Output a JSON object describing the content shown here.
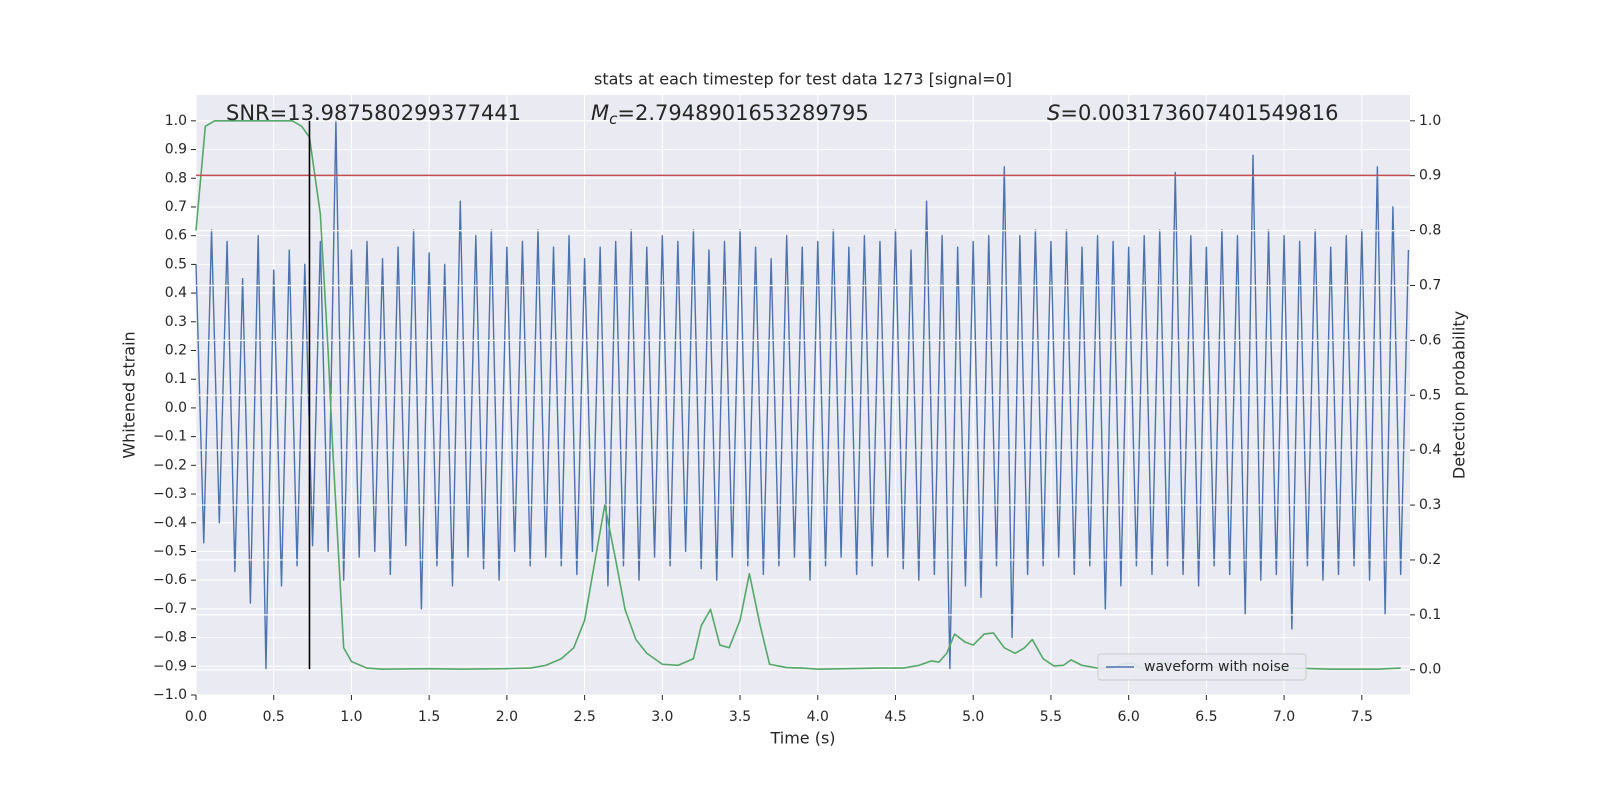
{
  "chart_data": {
    "type": "line",
    "title": "stats at each timestep for test data 1273 [signal=0]",
    "xlabel": "Time (s)",
    "ylabel": "Whitened strain",
    "y2label": "Detection probability",
    "annotations": {
      "snr": "SNR=13.987580299377441",
      "mc_symbol": "M",
      "mc_sub": "c",
      "mc_text": "=2.7948901653289795",
      "s_symbol": "S",
      "s_text": "=0.003173607401549816"
    },
    "xlim": [
      0,
      7.81
    ],
    "ylim": [
      -1.0,
      1.09
    ],
    "y2lim": [
      -0.046,
      1.047
    ],
    "xticks": [
      {
        "value": 0,
        "label": "0.0"
      },
      0.5,
      {
        "value": 1,
        "label": "1.0"
      },
      1.5,
      {
        "value": 2,
        "label": "2.0"
      },
      2.5,
      {
        "value": 3,
        "label": "3.0"
      },
      3.5,
      {
        "value": 4,
        "label": "4.0"
      },
      4.5,
      {
        "value": 5,
        "label": "5.0"
      },
      5.5,
      {
        "value": 6,
        "label": "6.0"
      },
      6.5,
      {
        "value": 7,
        "label": "7.0"
      },
      7.5
    ],
    "yticks": [
      {
        "value": -1,
        "label": "−1.0"
      },
      {
        "value": -0.9,
        "label": "−0.9"
      },
      {
        "value": -0.8,
        "label": "−0.8"
      },
      {
        "value": -0.7,
        "label": "−0.7"
      },
      {
        "value": -0.6,
        "label": "−0.6"
      },
      {
        "value": -0.5,
        "label": "−0.5"
      },
      {
        "value": -0.4,
        "label": "−0.4"
      },
      {
        "value": -0.3,
        "label": "−0.3"
      },
      {
        "value": -0.2,
        "label": "−0.2"
      },
      {
        "value": -0.1,
        "label": "−0.1"
      },
      {
        "value": 0,
        "label": "0.0"
      },
      0.1,
      0.2,
      0.3,
      0.4,
      0.5,
      0.6,
      0.7,
      0.8,
      0.9,
      {
        "value": 1,
        "label": "1.0"
      }
    ],
    "y2ticks": [
      {
        "value": 0,
        "label": "0.0"
      },
      0.1,
      0.2,
      0.3,
      0.4,
      0.5,
      0.6,
      0.7,
      0.8,
      0.9,
      {
        "value": 1,
        "label": "1.0"
      }
    ],
    "grid": true,
    "legend_loc": "lower right",
    "series": [
      {
        "name": "waveform with noise",
        "color": "#4c72b0",
        "x": [
          0.0,
          0.05,
          0.1,
          0.15,
          0.2,
          0.25,
          0.3,
          0.35,
          0.4,
          0.45,
          0.5,
          0.55,
          0.6,
          0.65,
          0.7,
          0.75,
          0.8,
          0.85,
          0.9,
          0.95,
          1.0,
          1.05,
          1.1,
          1.15,
          1.2,
          1.25,
          1.3,
          1.35,
          1.4,
          1.45,
          1.5,
          1.55,
          1.6,
          1.65,
          1.7,
          1.75,
          1.8,
          1.85,
          1.9,
          1.95,
          2.0,
          2.05,
          2.1,
          2.15,
          2.2,
          2.25,
          2.3,
          2.35,
          2.4,
          2.45,
          2.5,
          2.55,
          2.6,
          2.65,
          2.7,
          2.75,
          2.8,
          2.85,
          2.9,
          2.95,
          3.0,
          3.05,
          3.1,
          3.15,
          3.2,
          3.25,
          3.3,
          3.35,
          3.4,
          3.45,
          3.5,
          3.55,
          3.6,
          3.65,
          3.7,
          3.75,
          3.8,
          3.85,
          3.9,
          3.95,
          4.0,
          4.05,
          4.1,
          4.15,
          4.2,
          4.25,
          4.3,
          4.35,
          4.4,
          4.45,
          4.5,
          4.55,
          4.6,
          4.65,
          4.7,
          4.75,
          4.8,
          4.85,
          4.9,
          4.95,
          5.0,
          5.05,
          5.1,
          5.15,
          5.2,
          5.25,
          5.3,
          5.35,
          5.4,
          5.45,
          5.5,
          5.55,
          5.6,
          5.65,
          5.7,
          5.75,
          5.8,
          5.85,
          5.9,
          5.95,
          6.0,
          6.05,
          6.1,
          6.15,
          6.2,
          6.25,
          6.3,
          6.35,
          6.4,
          6.45,
          6.5,
          6.55,
          6.6,
          6.65,
          6.7,
          6.75,
          6.8,
          6.85,
          6.9,
          6.95,
          7.0,
          7.05,
          7.1,
          7.15,
          7.2,
          7.25,
          7.3,
          7.35,
          7.4,
          7.45,
          7.5,
          7.55,
          7.6,
          7.65,
          7.7,
          7.75,
          7.8
        ],
        "values": [
          0.5,
          -0.47,
          0.62,
          -0.4,
          0.58,
          -0.57,
          0.45,
          -0.68,
          0.6,
          -0.91,
          0.48,
          -0.62,
          0.55,
          -0.55,
          0.5,
          -0.48,
          0.58,
          -0.5,
          1.0,
          -0.6,
          0.55,
          -0.52,
          0.58,
          -0.5,
          0.52,
          -0.58,
          0.56,
          -0.48,
          0.62,
          -0.7,
          0.54,
          -0.55,
          0.5,
          -0.62,
          0.72,
          -0.52,
          0.6,
          -0.56,
          0.62,
          -0.6,
          0.56,
          -0.5,
          0.58,
          -0.55,
          0.62,
          -0.52,
          0.56,
          -0.55,
          0.6,
          -0.58,
          0.52,
          -0.5,
          0.56,
          -0.62,
          0.58,
          -0.55,
          0.62,
          -0.6,
          0.56,
          -0.52,
          0.6,
          -0.55,
          0.58,
          -0.5,
          0.62,
          -0.56,
          0.55,
          -0.6,
          0.58,
          -0.52,
          0.62,
          -0.55,
          0.56,
          -0.58,
          0.52,
          -0.55,
          0.6,
          -0.52,
          0.56,
          -0.6,
          0.58,
          -0.55,
          0.62,
          -0.52,
          0.56,
          -0.58,
          0.6,
          -0.55,
          0.58,
          -0.52,
          0.62,
          -0.56,
          0.55,
          -0.6,
          0.72,
          -0.58,
          0.6,
          -0.91,
          0.56,
          -0.62,
          0.58,
          -0.66,
          0.6,
          -0.55,
          0.84,
          -0.8,
          0.6,
          -0.58,
          0.62,
          -0.55,
          0.58,
          -0.52,
          0.62,
          -0.58,
          0.56,
          -0.55,
          0.6,
          -0.7,
          0.58,
          -0.62,
          0.56,
          -0.55,
          0.6,
          -0.58,
          0.62,
          -0.55,
          0.82,
          -0.58,
          0.6,
          -0.62,
          0.56,
          -0.55,
          0.62,
          -0.58,
          0.6,
          -0.72,
          0.88,
          -0.6,
          0.62,
          -0.58,
          0.6,
          -0.77,
          0.58,
          -0.55,
          0.62,
          -0.6,
          0.56,
          -0.58,
          0.6,
          -0.55,
          0.62,
          -0.6,
          0.84,
          -0.72,
          0.7,
          -0.58,
          0.55
        ]
      },
      {
        "color": "#55a868",
        "axis": "y2",
        "x": [
          0.0,
          0.06,
          0.12,
          0.3,
          0.5,
          0.62,
          0.68,
          0.73,
          0.8,
          0.85,
          0.88,
          0.95,
          1.0,
          1.1,
          1.2,
          1.5,
          1.7,
          2.0,
          2.15,
          2.25,
          2.35,
          2.43,
          2.5,
          2.58,
          2.63,
          2.7,
          2.76,
          2.83,
          2.9,
          3.0,
          3.1,
          3.2,
          3.25,
          3.31,
          3.37,
          3.43,
          3.5,
          3.56,
          3.63,
          3.69,
          3.8,
          3.9,
          4.0,
          4.2,
          4.4,
          4.55,
          4.65,
          4.73,
          4.78,
          4.83,
          4.88,
          4.95,
          5.0,
          5.07,
          5.13,
          5.2,
          5.27,
          5.33,
          5.38,
          5.45,
          5.52,
          5.58,
          5.63,
          5.7,
          5.8,
          5.9,
          5.95,
          6.02,
          6.08,
          6.15,
          6.2,
          6.25,
          6.32,
          6.4,
          6.55,
          6.7,
          6.8,
          6.87,
          6.95,
          7.05,
          7.3,
          7.6,
          7.75
        ],
        "values": [
          0.8,
          0.99,
          1.0,
          1.0,
          1.0,
          1.0,
          0.99,
          0.97,
          0.83,
          0.58,
          0.4,
          0.04,
          0.015,
          0.003,
          0.001,
          0.002,
          0.001,
          0.002,
          0.003,
          0.008,
          0.02,
          0.04,
          0.09,
          0.22,
          0.3,
          0.2,
          0.11,
          0.055,
          0.03,
          0.01,
          0.008,
          0.02,
          0.08,
          0.11,
          0.045,
          0.04,
          0.09,
          0.175,
          0.08,
          0.01,
          0.004,
          0.003,
          0.001,
          0.002,
          0.003,
          0.003,
          0.008,
          0.016,
          0.014,
          0.03,
          0.065,
          0.05,
          0.045,
          0.065,
          0.067,
          0.04,
          0.03,
          0.04,
          0.055,
          0.02,
          0.007,
          0.008,
          0.018,
          0.008,
          0.003,
          0.003,
          0.01,
          0.012,
          0.003,
          0.005,
          0.012,
          0.013,
          0.005,
          0.003,
          0.005,
          0.003,
          0.01,
          0.008,
          0.002,
          0.003,
          0.001,
          0.001,
          0.003
        ]
      }
    ],
    "hlines": [
      {
        "y": 0.81,
        "color": "#c44e52"
      }
    ],
    "vlines": [
      {
        "x": 0.73,
        "ymin": -0.91,
        "ymax": 1.0,
        "color": "#000000"
      }
    ]
  }
}
